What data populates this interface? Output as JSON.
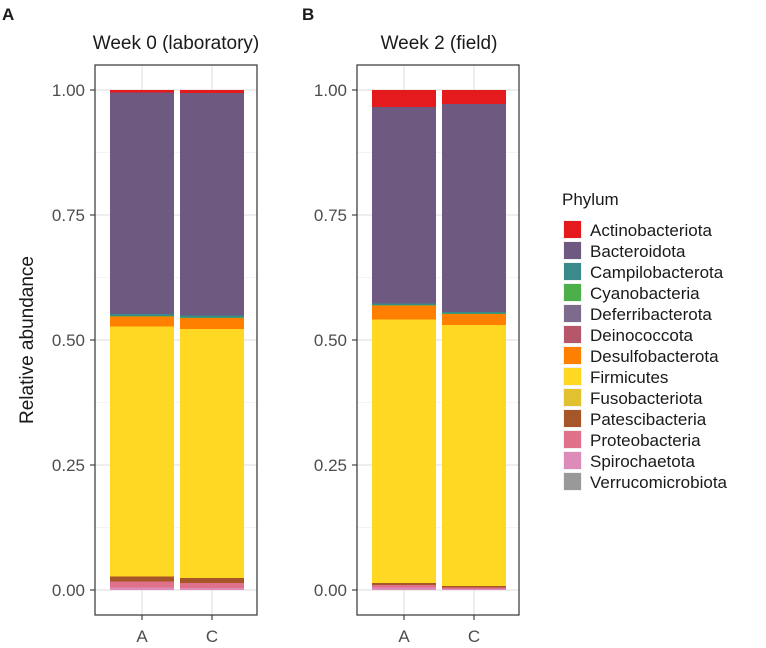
{
  "chart_data": {
    "type": "bar",
    "stacked": true,
    "ylabel": "Relative abundance",
    "ylim": [
      0,
      1
    ],
    "yticks": [
      "0.00",
      "0.25",
      "0.50",
      "0.75",
      "1.00"
    ],
    "legend": {
      "title": "Phylum",
      "placement": "right",
      "entries": [
        {
          "name": "Actinobacteriota",
          "color": "#e41a1c"
        },
        {
          "name": "Bacteroidota",
          "color": "#6e5a80"
        },
        {
          "name": "Campilobacterota",
          "color": "#3a8a8c"
        },
        {
          "name": "Cyanobacteria",
          "color": "#4daf4a"
        },
        {
          "name": "Deferribacterota",
          "color": "#7d6b8d"
        },
        {
          "name": "Deinococcota",
          "color": "#b5566a"
        },
        {
          "name": "Desulfobacterota",
          "color": "#ff7f00"
        },
        {
          "name": "Firmicutes",
          "color": "#ffd823"
        },
        {
          "name": "Fusobacteriota",
          "color": "#e2c131"
        },
        {
          "name": "Patescibacteria",
          "color": "#a65628"
        },
        {
          "name": "Proteobacteria",
          "color": "#e0718a"
        },
        {
          "name": "Spirochaetota",
          "color": "#dd8bb8"
        },
        {
          "name": "Verrucomicrobiota",
          "color": "#999999"
        }
      ]
    },
    "panels": [
      {
        "label": "A",
        "title": "Week 0 (laboratory)",
        "categories": [
          "A",
          "C"
        ],
        "series": [
          {
            "name": "Actinobacteriota",
            "values": [
              0.005,
              0.006
            ]
          },
          {
            "name": "Bacteroidota",
            "values": [
              0.443,
              0.445
            ]
          },
          {
            "name": "Campilobacterota",
            "values": [
              0.004,
              0.004
            ]
          },
          {
            "name": "Cyanobacteria",
            "values": [
              0.001,
              0.001
            ]
          },
          {
            "name": "Deferribacterota",
            "values": [
              0.0,
              0.0
            ]
          },
          {
            "name": "Deinococcota",
            "values": [
              0.0,
              0.0
            ]
          },
          {
            "name": "Desulfobacterota",
            "values": [
              0.02,
              0.022
            ]
          },
          {
            "name": "Firmicutes",
            "values": [
              0.5,
              0.498
            ]
          },
          {
            "name": "Fusobacteriota",
            "values": [
              0.0,
              0.0
            ]
          },
          {
            "name": "Patescibacteria",
            "values": [
              0.01,
              0.01
            ]
          },
          {
            "name": "Proteobacteria",
            "values": [
              0.012,
              0.01
            ]
          },
          {
            "name": "Spirochaetota",
            "values": [
              0.005,
              0.004
            ]
          },
          {
            "name": "Verrucomicrobiota",
            "values": [
              0.0,
              0.0
            ]
          }
        ]
      },
      {
        "label": "B",
        "title": "Week 2 (field)",
        "categories": [
          "A",
          "C"
        ],
        "series": [
          {
            "name": "Actinobacteriota",
            "values": [
              0.034,
              0.028
            ]
          },
          {
            "name": "Bacteroidota",
            "values": [
              0.393,
              0.416
            ]
          },
          {
            "name": "Campilobacterota",
            "values": [
              0.003,
              0.003
            ]
          },
          {
            "name": "Cyanobacteria",
            "values": [
              0.001,
              0.001
            ]
          },
          {
            "name": "Deferribacterota",
            "values": [
              0.0,
              0.0
            ]
          },
          {
            "name": "Deinococcota",
            "values": [
              0.0,
              0.0
            ]
          },
          {
            "name": "Desulfobacterota",
            "values": [
              0.028,
              0.022
            ]
          },
          {
            "name": "Firmicutes",
            "values": [
              0.527,
              0.522
            ]
          },
          {
            "name": "Fusobacteriota",
            "values": [
              0.0,
              0.0
            ]
          },
          {
            "name": "Patescibacteria",
            "values": [
              0.004,
              0.003
            ]
          },
          {
            "name": "Proteobacteria",
            "values": [
              0.005,
              0.003
            ]
          },
          {
            "name": "Spirochaetota",
            "values": [
              0.005,
              0.002
            ]
          },
          {
            "name": "Verrucomicrobiota",
            "values": [
              0.0,
              0.0
            ]
          }
        ]
      }
    ]
  }
}
